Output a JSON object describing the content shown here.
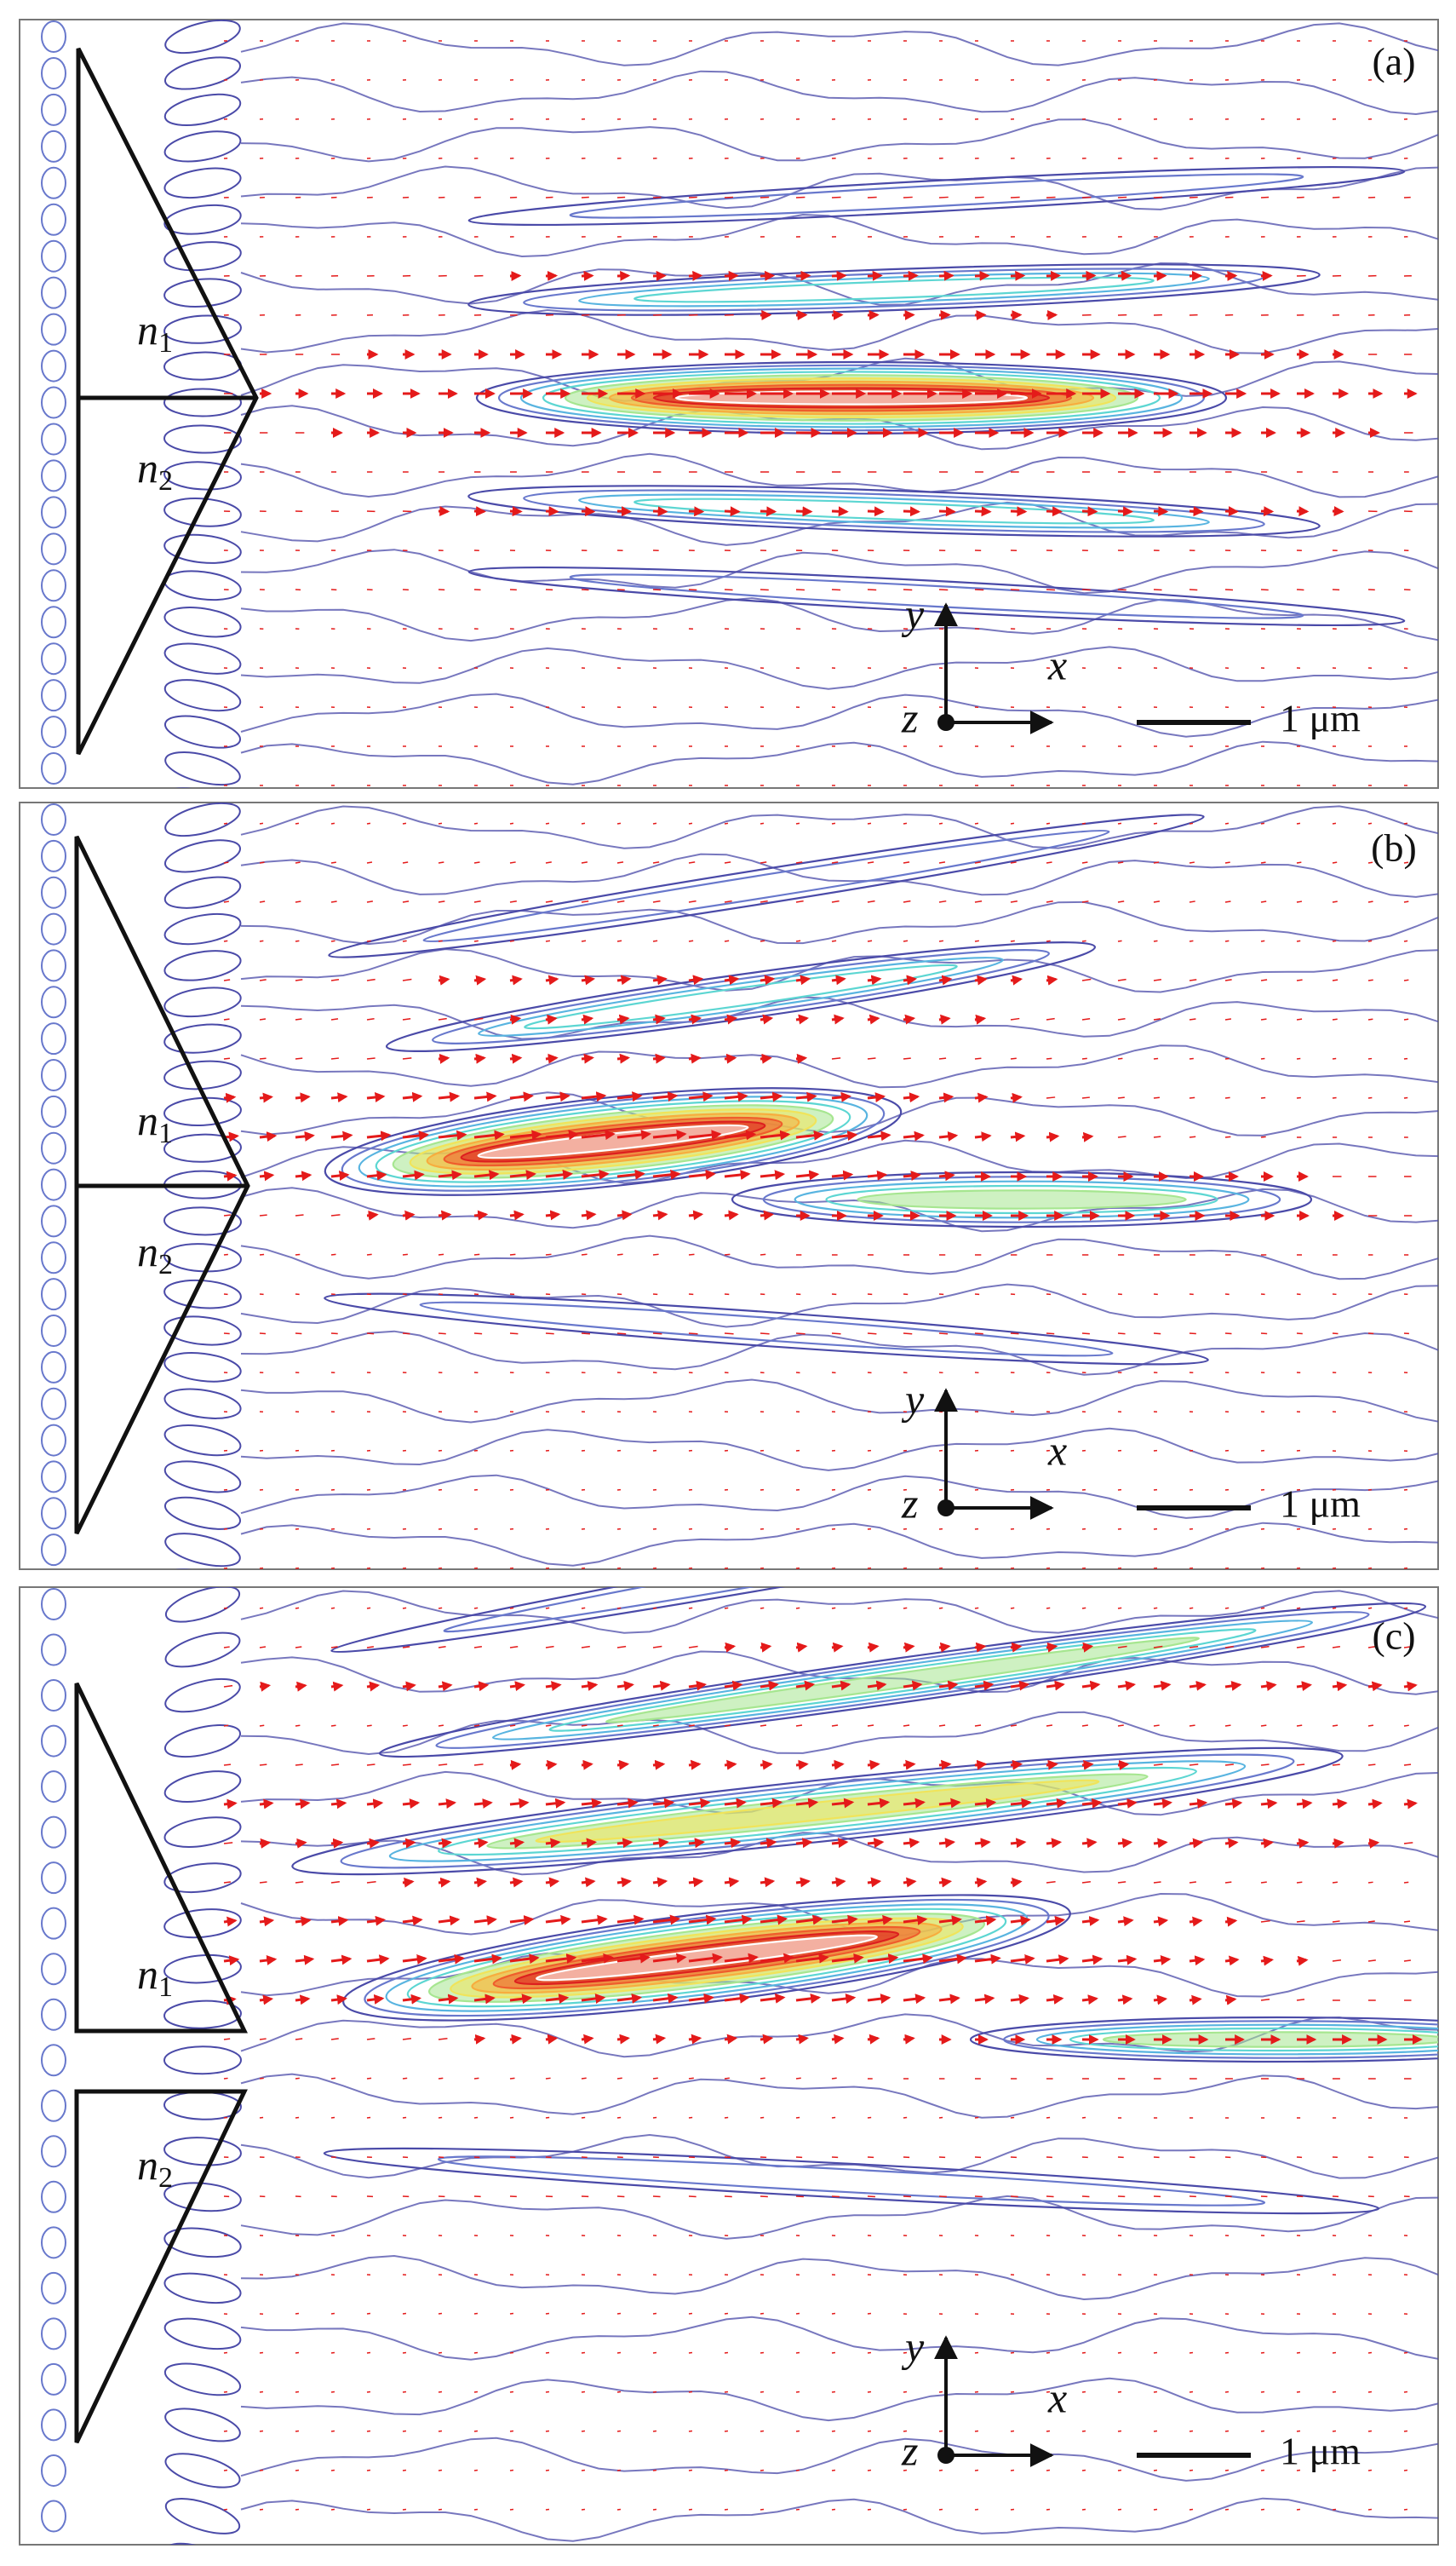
{
  "panels": [
    {
      "label": "(a)",
      "regions": [
        {
          "symbol": "n",
          "subscript": "1"
        },
        {
          "symbol": "n",
          "subscript": "2"
        }
      ],
      "axes": {
        "x": "x",
        "y": "y",
        "z": "z"
      },
      "scale_bar": "1 μm"
    },
    {
      "label": "(b)",
      "regions": [
        {
          "symbol": "n",
          "subscript": "1"
        },
        {
          "symbol": "n",
          "subscript": "2"
        }
      ],
      "axes": {
        "x": "x",
        "y": "y",
        "z": "z"
      },
      "scale_bar": "1 μm"
    },
    {
      "label": "(c)",
      "regions": [
        {
          "symbol": "n",
          "subscript": "1"
        },
        {
          "symbol": "n",
          "subscript": "2"
        }
      ],
      "axes": {
        "x": "x",
        "y": "y",
        "z": "z"
      },
      "scale_bar": "1 μm"
    }
  ]
}
